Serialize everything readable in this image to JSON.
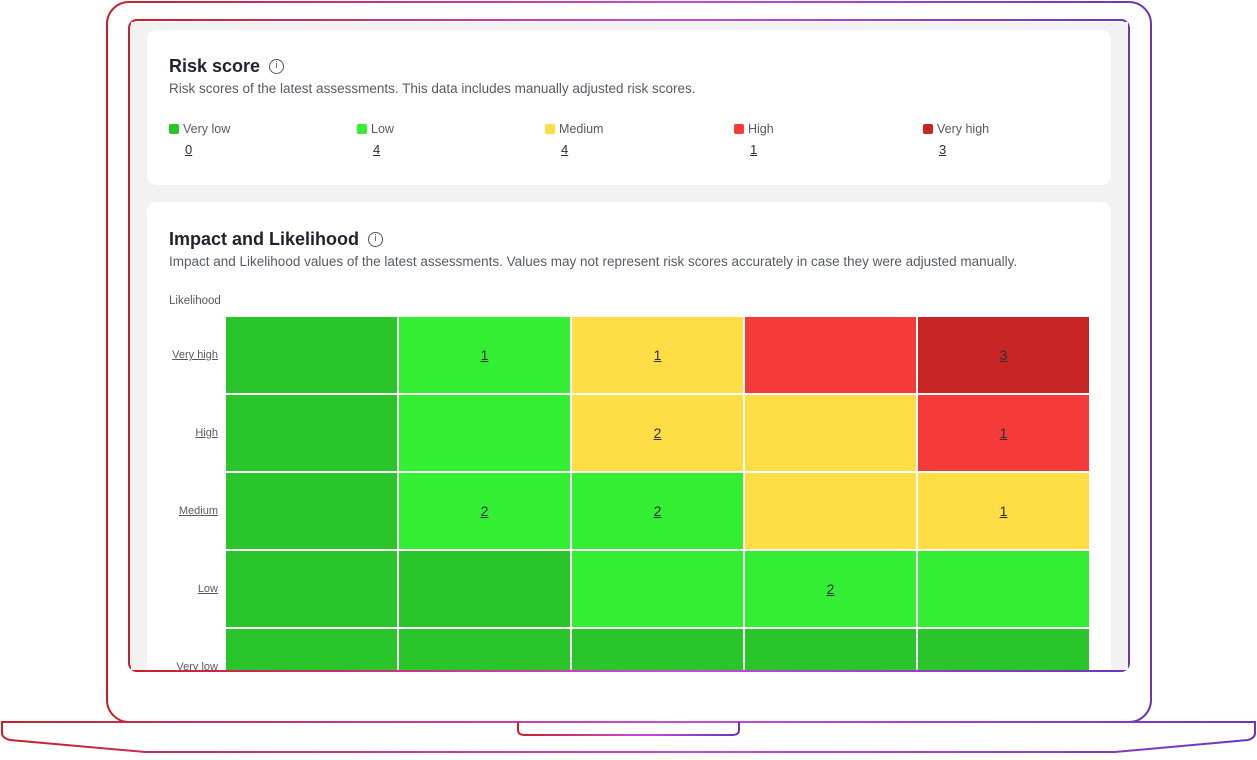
{
  "colors": {
    "very_low": "#2ac52a",
    "low": "#33ee33",
    "medium": "#ffdd44",
    "high": "#f53a3a",
    "very_high": "#c82525"
  },
  "risk_score": {
    "title": "Risk score",
    "info_icon": "info-icon",
    "description": "Risk scores of the latest assessments. This data includes manually adjusted risk scores.",
    "legend": [
      {
        "label": "Very low",
        "count": "0",
        "color": "#2ac52a"
      },
      {
        "label": "Low",
        "count": "4",
        "color": "#33ee33"
      },
      {
        "label": "Medium",
        "count": "4",
        "color": "#ffdd44"
      },
      {
        "label": "High",
        "count": "1",
        "color": "#f53a3a"
      },
      {
        "label": "Very high",
        "count": "3",
        "color": "#c82525"
      }
    ]
  },
  "impact_likelihood": {
    "title": "Impact and Likelihood",
    "info_icon": "info-icon",
    "description": "Impact and Likelihood values of the latest assessments. Values may not represent risk scores accurately in case they were adjusted manually.",
    "y_axis_title": "Likelihood",
    "y_labels": [
      "Very high",
      "High",
      "Medium",
      "Low",
      "Very low"
    ],
    "matrix": [
      [
        {
          "level": "very_low",
          "value": ""
        },
        {
          "level": "low",
          "value": "1"
        },
        {
          "level": "medium",
          "value": "1"
        },
        {
          "level": "high",
          "value": ""
        },
        {
          "level": "very_high",
          "value": "3"
        }
      ],
      [
        {
          "level": "very_low",
          "value": ""
        },
        {
          "level": "low",
          "value": ""
        },
        {
          "level": "medium",
          "value": "2"
        },
        {
          "level": "medium",
          "value": ""
        },
        {
          "level": "high",
          "value": "1"
        }
      ],
      [
        {
          "level": "very_low",
          "value": ""
        },
        {
          "level": "low",
          "value": "2"
        },
        {
          "level": "low",
          "value": "2"
        },
        {
          "level": "medium",
          "value": ""
        },
        {
          "level": "medium",
          "value": "1"
        }
      ],
      [
        {
          "level": "very_low",
          "value": ""
        },
        {
          "level": "very_low",
          "value": ""
        },
        {
          "level": "low",
          "value": ""
        },
        {
          "level": "low",
          "value": "2"
        },
        {
          "level": "low",
          "value": ""
        }
      ],
      [
        {
          "level": "very_low",
          "value": ""
        },
        {
          "level": "very_low",
          "value": ""
        },
        {
          "level": "very_low",
          "value": ""
        },
        {
          "level": "very_low",
          "value": ""
        },
        {
          "level": "very_low",
          "value": ""
        }
      ]
    ]
  }
}
